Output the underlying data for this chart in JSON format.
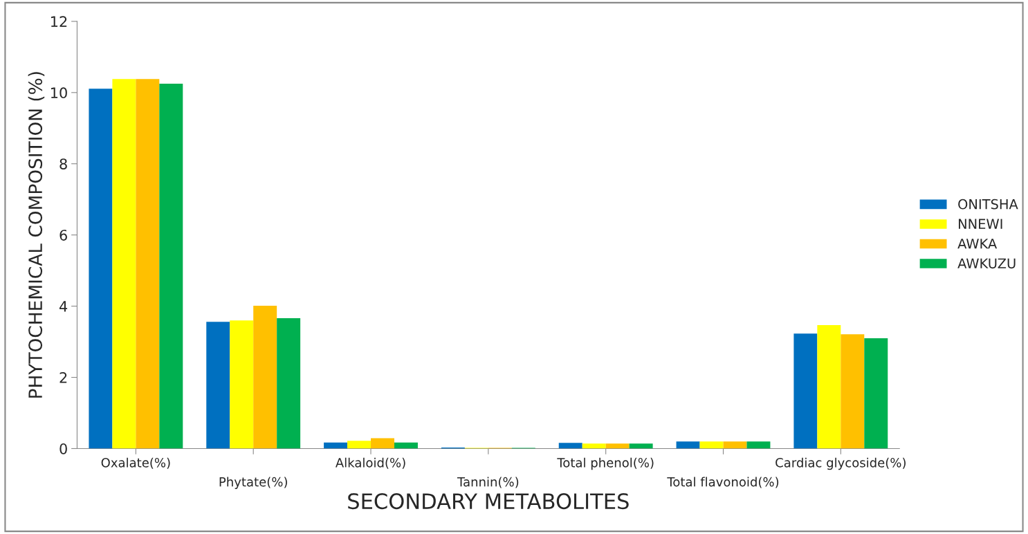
{
  "chart_data": {
    "type": "bar",
    "xlabel": "SECONDARY METABOLITES",
    "ylabel": "PHYTOCHEMICAL COMPOSITION (%)",
    "categories": [
      "Oxalate(%)",
      "Phytate(%)",
      "Alkaloid(%)",
      "Tannin(%)",
      "Total phenol(%)",
      "Total flavonoid(%)",
      "Cardiac glycoside(%)"
    ],
    "series": [
      {
        "name": "ONITSHA",
        "color": "#0070c0",
        "values": [
          10.11,
          3.56,
          0.17,
          0.03,
          0.16,
          0.2,
          3.23
        ]
      },
      {
        "name": "NNEWI",
        "color": "#ffff00",
        "values": [
          10.38,
          3.6,
          0.22,
          0.02,
          0.14,
          0.2,
          3.47
        ]
      },
      {
        "name": "AWKA",
        "color": "#ffc000",
        "values": [
          10.38,
          4.01,
          0.29,
          0.02,
          0.14,
          0.2,
          3.21
        ]
      },
      {
        "name": "AWKUZU",
        "color": "#00b050",
        "values": [
          10.25,
          3.66,
          0.17,
          0.02,
          0.14,
          0.2,
          3.1
        ]
      }
    ],
    "ylim": [
      0,
      12
    ],
    "yticks": [
      0,
      2,
      4,
      6,
      8,
      10,
      12
    ],
    "grid": false,
    "legend": "right"
  }
}
